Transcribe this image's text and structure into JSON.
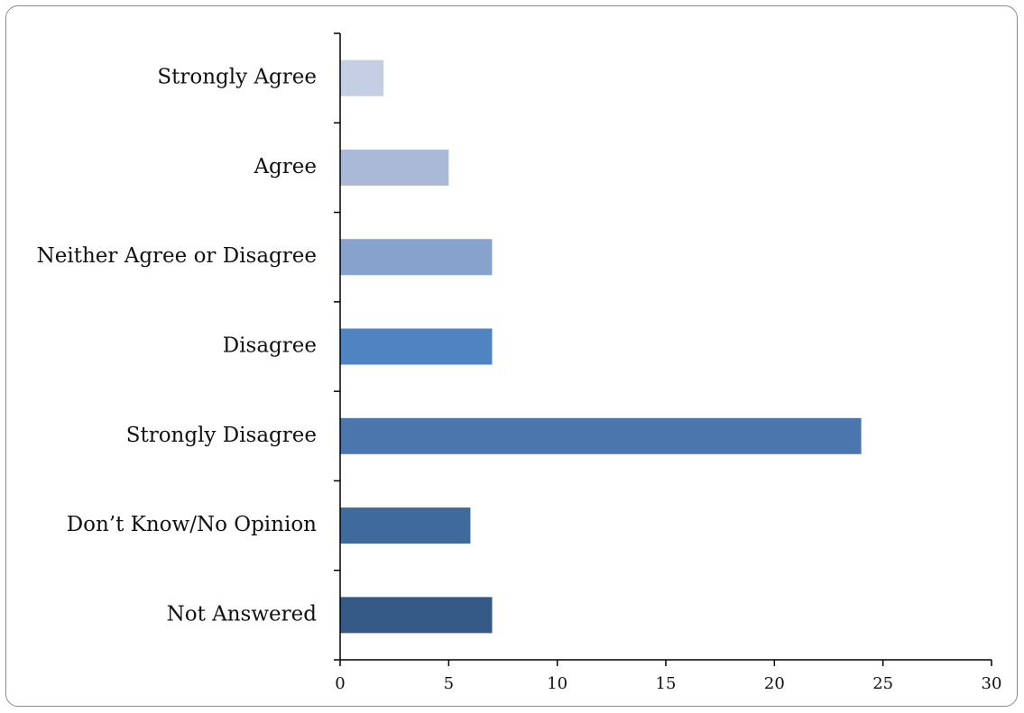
{
  "chart_data": {
    "type": "bar",
    "orientation": "horizontal",
    "title": "",
    "xlabel": "",
    "ylabel": "",
    "categories": [
      "Strongly Agree",
      "Agree",
      "Neither Agree or Disagree",
      "Disagree",
      "Strongly Disagree",
      "Don’t Know/No Opinion",
      "Not Answered"
    ],
    "values": [
      2,
      5,
      7,
      7,
      24,
      6,
      7
    ],
    "bar_colors": [
      "#c4cfe3",
      "#a9b9d7",
      "#87a2cc",
      "#4f83c1",
      "#4a76ad",
      "#3f6a9c",
      "#355a85"
    ],
    "xlim": [
      0,
      30
    ],
    "x_ticks": [
      0,
      5,
      10,
      15,
      20,
      25,
      30
    ],
    "grid": false,
    "legend": "none"
  }
}
